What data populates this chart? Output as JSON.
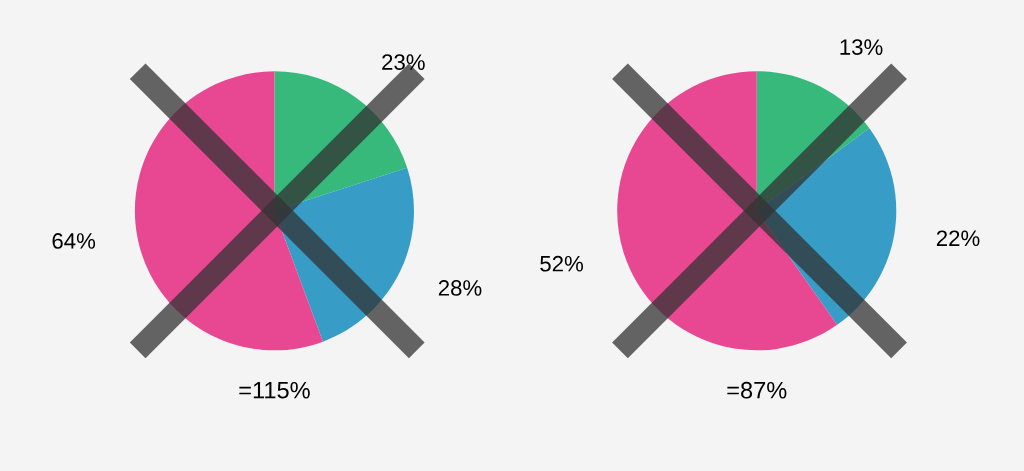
{
  "chart_data": [
    {
      "type": "pie",
      "categories": [
        null,
        null,
        null
      ],
      "values": [
        23,
        28,
        64
      ],
      "colors": [
        "#36b97a",
        "#379dc6",
        "#e84892"
      ],
      "value_labels": [
        "23%",
        "28%",
        "64%"
      ],
      "annotations": [
        "=115%"
      ]
    },
    {
      "type": "pie",
      "categories": [
        null,
        null,
        null
      ],
      "values": [
        13,
        22,
        52
      ],
      "colors": [
        "#36b97a",
        "#379dc6",
        "#e84892"
      ],
      "value_labels": [
        "13%",
        "22%",
        "52%"
      ],
      "annotations": [
        "=87%"
      ]
    }
  ]
}
